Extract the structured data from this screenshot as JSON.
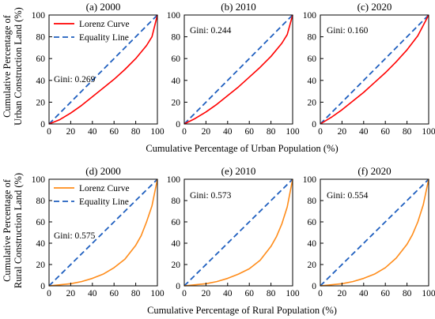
{
  "figure": {
    "top_xlabel": "Cumulative Percentage of Urban Population (%)",
    "bottom_xlabel": "Cumulative Percentage of Rural Population (%)",
    "top_ylabel_line1": "Cumulative Percentage of",
    "top_ylabel_line2": "Urban Construction Land (%)",
    "bottom_ylabel_line1": "Cumulative Percentage of",
    "bottom_ylabel_line2": "Rural Construction Land  (%)",
    "legend_lorenz": "Lorenz Curve",
    "legend_equality": "Equality Line",
    "colors": {
      "urban": "#ff0000",
      "rural": "#ff8c1a",
      "equality": "#1f5fbf"
    }
  },
  "chart_data": [
    {
      "type": "line",
      "title": "(a) 2000",
      "gini_label": "Gini: 0.269",
      "xlim": [
        0,
        100
      ],
      "ylim": [
        0,
        100
      ],
      "xticks": [
        "0",
        "20",
        "40",
        "60",
        "80",
        "100"
      ],
      "yticks": [
        "0",
        "20",
        "40",
        "60",
        "80",
        "100"
      ],
      "series": [
        {
          "name": "Lorenz Curve",
          "x": [
            0,
            10,
            20,
            30,
            40,
            50,
            60,
            70,
            80,
            90,
            95,
            100
          ],
          "y": [
            0,
            4,
            10,
            17,
            25,
            33,
            41,
            50,
            60,
            72,
            80,
            100
          ]
        },
        {
          "name": "Equality Line",
          "x": [
            0,
            100
          ],
          "y": [
            0,
            100
          ]
        }
      ]
    },
    {
      "type": "line",
      "title": "(b) 2010",
      "gini_label": "Gini: 0.244",
      "xlim": [
        0,
        100
      ],
      "ylim": [
        0,
        100
      ],
      "xticks": [
        "0",
        "20",
        "40",
        "60",
        "80",
        "100"
      ],
      "yticks": [
        "0",
        "20",
        "40",
        "60",
        "80",
        "100"
      ],
      "series": [
        {
          "name": "Lorenz Curve",
          "x": [
            0,
            10,
            20,
            30,
            40,
            50,
            60,
            70,
            80,
            90,
            95,
            100
          ],
          "y": [
            0,
            5,
            11,
            18,
            26,
            34,
            43,
            52,
            62,
            74,
            82,
            100
          ]
        },
        {
          "name": "Equality Line",
          "x": [
            0,
            100
          ],
          "y": [
            0,
            100
          ]
        }
      ]
    },
    {
      "type": "line",
      "title": "(c) 2020",
      "gini_label": "Gini: 0.160",
      "xlim": [
        0,
        100
      ],
      "ylim": [
        0,
        100
      ],
      "xticks": [
        "0",
        "20",
        "40",
        "60",
        "80",
        "100"
      ],
      "yticks": [
        "0",
        "20",
        "40",
        "60",
        "80",
        "100"
      ],
      "series": [
        {
          "name": "Lorenz Curve",
          "x": [
            0,
            10,
            20,
            30,
            40,
            50,
            60,
            70,
            80,
            90,
            100
          ],
          "y": [
            0,
            6,
            13,
            21,
            29,
            38,
            47,
            57,
            68,
            81,
            100
          ]
        },
        {
          "name": "Equality Line",
          "x": [
            0,
            100
          ],
          "y": [
            0,
            100
          ]
        }
      ]
    },
    {
      "type": "line",
      "title": "(d) 2000",
      "gini_label": "Gini: 0.575",
      "xlim": [
        0,
        100
      ],
      "ylim": [
        0,
        100
      ],
      "xticks": [
        "0",
        "20",
        "40",
        "60",
        "80",
        "100"
      ],
      "yticks": [
        "0",
        "20",
        "40",
        "60",
        "80",
        "100"
      ],
      "series": [
        {
          "name": "Lorenz Curve",
          "x": [
            0,
            10,
            20,
            30,
            40,
            50,
            60,
            70,
            80,
            85,
            90,
            95,
            100
          ],
          "y": [
            0,
            1,
            2,
            4,
            7,
            11,
            17,
            25,
            38,
            47,
            60,
            75,
            100
          ]
        },
        {
          "name": "Equality Line",
          "x": [
            0,
            100
          ],
          "y": [
            0,
            100
          ]
        }
      ]
    },
    {
      "type": "line",
      "title": "(e) 2010",
      "gini_label": "Gini: 0.573",
      "xlim": [
        0,
        100
      ],
      "ylim": [
        0,
        100
      ],
      "xticks": [
        "0",
        "20",
        "40",
        "60",
        "80",
        "100"
      ],
      "yticks": [
        "0",
        "20",
        "40",
        "60",
        "80",
        "100"
      ],
      "series": [
        {
          "name": "Lorenz Curve",
          "x": [
            0,
            10,
            20,
            30,
            40,
            50,
            60,
            70,
            80,
            85,
            90,
            95,
            100
          ],
          "y": [
            0,
            1,
            2,
            4,
            7,
            11,
            16,
            24,
            37,
            46,
            58,
            74,
            100
          ]
        },
        {
          "name": "Equality Line",
          "x": [
            0,
            100
          ],
          "y": [
            0,
            100
          ]
        }
      ]
    },
    {
      "type": "line",
      "title": "(f) 2020",
      "gini_label": "Gini: 0.554",
      "xlim": [
        0,
        100
      ],
      "ylim": [
        0,
        100
      ],
      "xticks": [
        "0",
        "20",
        "40",
        "60",
        "80",
        "100"
      ],
      "yticks": [
        "0",
        "20",
        "40",
        "60",
        "80",
        "100"
      ],
      "series": [
        {
          "name": "Lorenz Curve",
          "x": [
            0,
            10,
            20,
            30,
            40,
            50,
            60,
            70,
            80,
            85,
            90,
            95,
            100
          ],
          "y": [
            0,
            1,
            2,
            4,
            7,
            11,
            17,
            26,
            39,
            48,
            60,
            76,
            100
          ]
        },
        {
          "name": "Equality Line",
          "x": [
            0,
            100
          ],
          "y": [
            0,
            100
          ]
        }
      ]
    }
  ]
}
